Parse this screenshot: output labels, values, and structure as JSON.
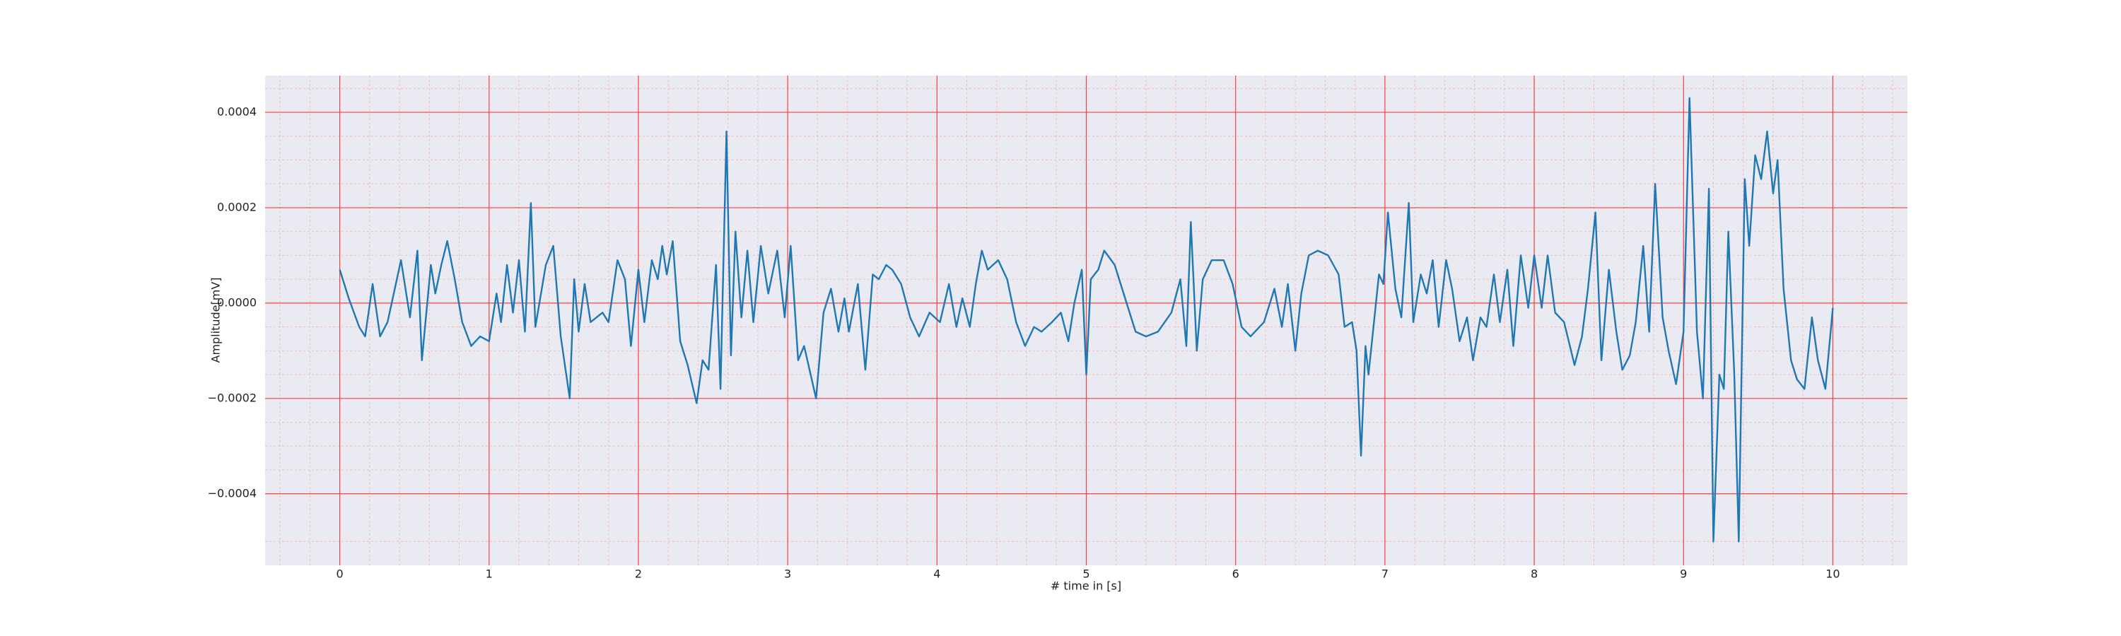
{
  "chart_data": {
    "type": "line",
    "xlabel": "# time in [s]",
    "ylabel": "Amplitude[mV]",
    "color": "#1f77b4",
    "grid": true,
    "minor_grid": true,
    "xlim": [
      -0.5,
      10.5
    ],
    "ylim": [
      -0.00055,
      0.000477
    ],
    "xticks": [
      0,
      1,
      2,
      3,
      4,
      5,
      6,
      7,
      8,
      9,
      10
    ],
    "yticks": [
      {
        "value": -0.0004,
        "label": "−0.0004"
      },
      {
        "value": -0.0002,
        "label": "−0.0002"
      },
      {
        "value": 0,
        "label": "0.0000"
      },
      0.0002,
      0.0004
    ],
    "xminorticks": [
      -0.4,
      -0.2,
      0.2,
      0.4,
      0.6,
      0.8,
      1.2,
      1.4,
      1.6,
      1.8,
      2.2,
      2.4,
      2.6,
      2.8,
      3.2,
      3.4,
      3.6,
      3.8,
      4.2,
      4.4,
      4.6,
      4.8,
      5.2,
      5.4,
      5.6,
      5.8,
      6.2,
      6.4,
      6.6,
      6.8,
      7.2,
      7.4,
      7.6,
      7.8,
      8.2,
      8.4,
      8.6,
      8.8,
      9.2,
      9.4,
      9.6,
      9.8,
      10.2,
      10.4
    ],
    "yminorticks": [
      -0.0005,
      -0.00035,
      -0.0003,
      -0.00025,
      -0.00015,
      -0.0001,
      -5e-05,
      5e-05,
      0.0001,
      0.00015,
      0.00025,
      0.0003,
      0.00035,
      0.00045
    ],
    "x": [
      0,
      0.06,
      0.13,
      0.17,
      0.22,
      0.27,
      0.32,
      0.41,
      0.47,
      0.52,
      0.55,
      0.61,
      0.64,
      0.68,
      0.72,
      0.77,
      0.82,
      0.88,
      0.94,
      1.0,
      1.05,
      1.08,
      1.12,
      1.16,
      1.2,
      1.24,
      1.28,
      1.31,
      1.38,
      1.43,
      1.48,
      1.54,
      1.57,
      1.6,
      1.64,
      1.68,
      1.76,
      1.8,
      1.86,
      1.91,
      1.95,
      2.0,
      2.04,
      2.09,
      2.13,
      2.16,
      2.19,
      2.23,
      2.28,
      2.33,
      2.39,
      2.43,
      2.47,
      2.52,
      2.55,
      2.59,
      2.62,
      2.65,
      2.69,
      2.73,
      2.77,
      2.82,
      2.87,
      2.93,
      2.98,
      3.02,
      3.07,
      3.11,
      3.19,
      3.24,
      3.29,
      3.34,
      3.38,
      3.41,
      3.47,
      3.52,
      3.57,
      3.61,
      3.66,
      3.7,
      3.76,
      3.82,
      3.88,
      3.95,
      4.02,
      4.08,
      4.13,
      4.17,
      4.22,
      4.26,
      4.3,
      4.34,
      4.41,
      4.47,
      4.53,
      4.59,
      4.65,
      4.7,
      4.77,
      4.83,
      4.88,
      4.92,
      4.97,
      5.0,
      5.03,
      5.08,
      5.12,
      5.19,
      5.26,
      5.33,
      5.4,
      5.48,
      5.57,
      5.63,
      5.67,
      5.7,
      5.74,
      5.78,
      5.84,
      5.92,
      5.98,
      6.04,
      6.1,
      6.19,
      6.26,
      6.31,
      6.35,
      6.4,
      6.44,
      6.49,
      6.55,
      6.62,
      6.69,
      6.73,
      6.78,
      6.81,
      6.84,
      6.87,
      6.89,
      6.92,
      6.96,
      6.99,
      7.02,
      7.07,
      7.11,
      7.16,
      7.19,
      7.24,
      7.28,
      7.32,
      7.36,
      7.41,
      7.45,
      7.5,
      7.55,
      7.59,
      7.64,
      7.68,
      7.73,
      7.77,
      7.82,
      7.86,
      7.91,
      7.96,
      8.0,
      8.05,
      8.09,
      8.14,
      8.2,
      8.27,
      8.32,
      8.36,
      8.41,
      8.45,
      8.5,
      8.55,
      8.59,
      8.64,
      8.68,
      8.73,
      8.77,
      8.81,
      8.86,
      8.9,
      8.95,
      9.0,
      9.04,
      9.09,
      9.13,
      9.17,
      9.2,
      9.24,
      9.27,
      9.3,
      9.34,
      9.37,
      9.41,
      9.44,
      9.48,
      9.52,
      9.56,
      9.6,
      9.63,
      9.67,
      9.72,
      9.76,
      9.81,
      9.86,
      9.9,
      9.95,
      10.0
    ],
    "values": [
      7e-05,
      1e-05,
      -5e-05,
      -7e-05,
      4e-05,
      -7e-05,
      -4e-05,
      9e-05,
      -3e-05,
      0.00011,
      -0.00012,
      8e-05,
      2e-05,
      8e-05,
      0.00013,
      5e-05,
      -4e-05,
      -9e-05,
      -7e-05,
      -8e-05,
      2e-05,
      -4e-05,
      8e-05,
      -2e-05,
      9e-05,
      -6e-05,
      0.00021,
      -5e-05,
      8e-05,
      0.00012,
      -7e-05,
      -0.0002,
      5e-05,
      -6e-05,
      4e-05,
      -4e-05,
      -2e-05,
      -4e-05,
      9e-05,
      5e-05,
      -9e-05,
      7e-05,
      -4e-05,
      9e-05,
      5e-05,
      0.00012,
      6e-05,
      0.00013,
      -8e-05,
      -0.00013,
      -0.00021,
      -0.00012,
      -0.00014,
      8e-05,
      -0.00018,
      0.00036,
      -0.00011,
      0.00015,
      -3e-05,
      0.00011,
      -4e-05,
      0.00012,
      2e-05,
      0.00011,
      -3e-05,
      0.00012,
      -0.00012,
      -9e-05,
      -0.0002,
      -2e-05,
      3e-05,
      -6e-05,
      1e-05,
      -6e-05,
      4e-05,
      -0.00014,
      6e-05,
      5e-05,
      8e-05,
      7e-05,
      4e-05,
      -3e-05,
      -7e-05,
      -2e-05,
      -4e-05,
      4e-05,
      -5e-05,
      1e-05,
      -5e-05,
      4e-05,
      0.00011,
      7e-05,
      9e-05,
      5e-05,
      -4e-05,
      -9e-05,
      -5e-05,
      -6e-05,
      -4e-05,
      -2e-05,
      -8e-05,
      0,
      7e-05,
      -0.00015,
      5e-05,
      7e-05,
      0.00011,
      8e-05,
      1e-05,
      -6e-05,
      -7e-05,
      -6e-05,
      -2e-05,
      5e-05,
      -9e-05,
      0.00017,
      -0.0001,
      5e-05,
      9e-05,
      9e-05,
      4e-05,
      -5e-05,
      -7e-05,
      -4e-05,
      3e-05,
      -5e-05,
      4e-05,
      -0.0001,
      2e-05,
      0.0001,
      0.00011,
      0.0001,
      6e-05,
      -5e-05,
      -4e-05,
      -0.0001,
      -0.00032,
      -9e-05,
      -0.00015,
      -6e-05,
      6e-05,
      4e-05,
      0.00019,
      3e-05,
      -3e-05,
      0.00021,
      -4e-05,
      6e-05,
      2e-05,
      9e-05,
      -5e-05,
      9e-05,
      3e-05,
      -8e-05,
      -3e-05,
      -0.00012,
      -3e-05,
      -5e-05,
      6e-05,
      -4e-05,
      7e-05,
      -9e-05,
      0.0001,
      -1e-05,
      0.0001,
      -1e-05,
      0.0001,
      -2e-05,
      -4e-05,
      -0.00013,
      -7e-05,
      3e-05,
      0.00019,
      -0.00012,
      7e-05,
      -6e-05,
      -0.00014,
      -0.00011,
      -4e-05,
      0.00012,
      -6e-05,
      0.00025,
      -3e-05,
      -0.0001,
      -0.00017,
      -6e-05,
      0.00043,
      -6e-05,
      -0.0002,
      0.00024,
      -0.0005,
      -0.00015,
      -0.00018,
      0.00015,
      -0.00015,
      -0.0005,
      0.00026,
      0.00012,
      0.00031,
      0.00026,
      0.00036,
      0.00023,
      0.0003,
      3e-05,
      -0.00012,
      -0.00016,
      -0.00018,
      -3e-05,
      -0.00012,
      -0.00018,
      -1e-05
    ]
  }
}
